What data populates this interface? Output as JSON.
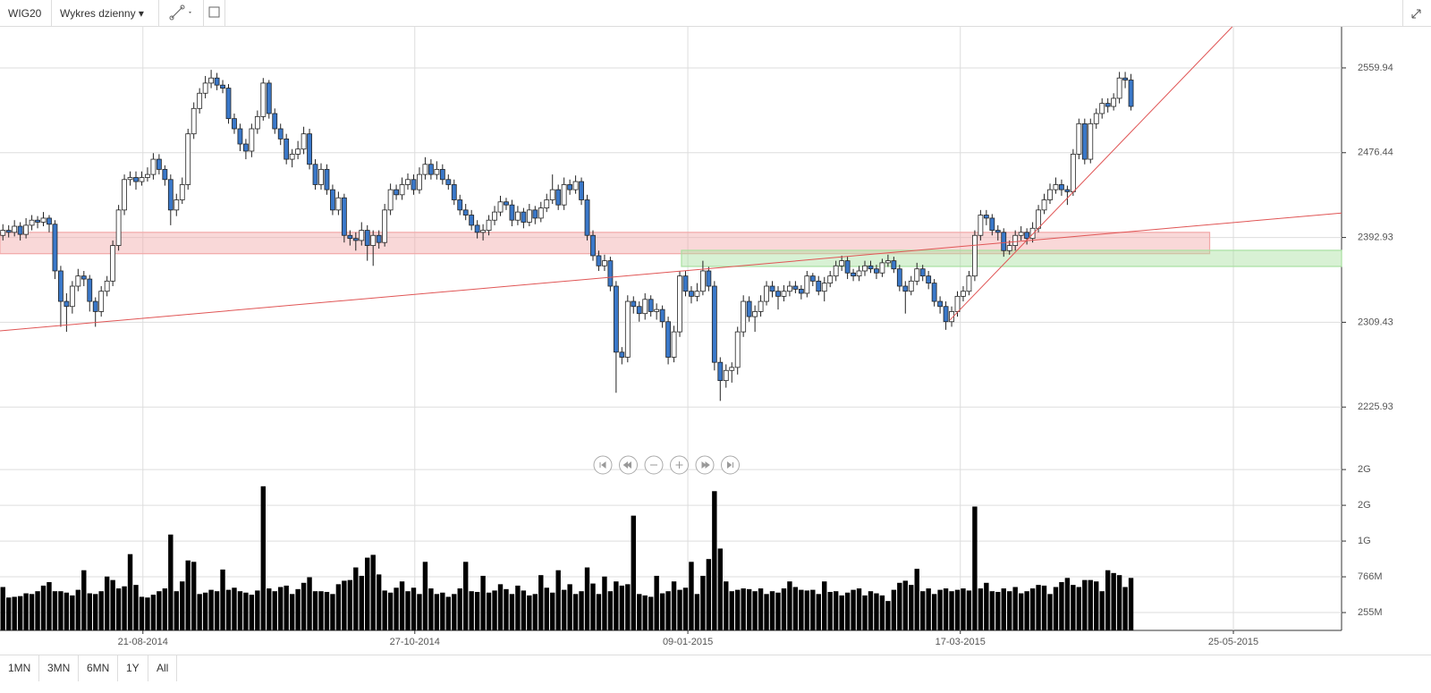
{
  "toolbar": {
    "symbol": "WIG20",
    "interval": "Wykres dzienny"
  },
  "range_buttons": [
    "1MN",
    "3MN",
    "6MN",
    "1Y",
    "All"
  ],
  "chart_data": {
    "type": "candlestick",
    "ohlc": [
      [
        2395,
        2406,
        2390,
        2400
      ],
      [
        2400,
        2405,
        2393,
        2398
      ],
      [
        2398,
        2410,
        2394,
        2404
      ],
      [
        2404,
        2408,
        2390,
        2396
      ],
      [
        2396,
        2412,
        2392,
        2405
      ],
      [
        2405,
        2415,
        2400,
        2410
      ],
      [
        2410,
        2414,
        2402,
        2408
      ],
      [
        2408,
        2418,
        2404,
        2412
      ],
      [
        2412,
        2415,
        2398,
        2406
      ],
      [
        2406,
        2410,
        2352,
        2360
      ],
      [
        2360,
        2365,
        2305,
        2330
      ],
      [
        2330,
        2338,
        2300,
        2325
      ],
      [
        2325,
        2350,
        2318,
        2345
      ],
      [
        2345,
        2362,
        2340,
        2355
      ],
      [
        2355,
        2360,
        2345,
        2352
      ],
      [
        2352,
        2356,
        2320,
        2330
      ],
      [
        2330,
        2334,
        2305,
        2320
      ],
      [
        2320,
        2345,
        2315,
        2340
      ],
      [
        2340,
        2355,
        2335,
        2350
      ],
      [
        2350,
        2390,
        2345,
        2385
      ],
      [
        2385,
        2425,
        2380,
        2420
      ],
      [
        2420,
        2455,
        2415,
        2450
      ],
      [
        2450,
        2458,
        2444,
        2452
      ],
      [
        2452,
        2458,
        2440,
        2448
      ],
      [
        2448,
        2458,
        2444,
        2452
      ],
      [
        2452,
        2462,
        2448,
        2455
      ],
      [
        2455,
        2476,
        2450,
        2470
      ],
      [
        2470,
        2475,
        2455,
        2460
      ],
      [
        2460,
        2464,
        2444,
        2450
      ],
      [
        2450,
        2455,
        2405,
        2420
      ],
      [
        2420,
        2436,
        2414,
        2430
      ],
      [
        2430,
        2452,
        2426,
        2445
      ],
      [
        2445,
        2500,
        2440,
        2495
      ],
      [
        2495,
        2526,
        2490,
        2520
      ],
      [
        2520,
        2540,
        2515,
        2535
      ],
      [
        2535,
        2552,
        2530,
        2545
      ],
      [
        2545,
        2558,
        2540,
        2550
      ],
      [
        2550,
        2555,
        2538,
        2543
      ],
      [
        2543,
        2548,
        2535,
        2540
      ],
      [
        2540,
        2544,
        2505,
        2510
      ],
      [
        2510,
        2515,
        2495,
        2500
      ],
      [
        2500,
        2505,
        2478,
        2485
      ],
      [
        2485,
        2490,
        2470,
        2478
      ],
      [
        2478,
        2505,
        2472,
        2500
      ],
      [
        2500,
        2518,
        2495,
        2512
      ],
      [
        2512,
        2550,
        2508,
        2545
      ],
      [
        2545,
        2548,
        2510,
        2515
      ],
      [
        2515,
        2520,
        2495,
        2500
      ],
      [
        2500,
        2505,
        2484,
        2490
      ],
      [
        2490,
        2495,
        2465,
        2470
      ],
      [
        2470,
        2480,
        2462,
        2475
      ],
      [
        2475,
        2488,
        2470,
        2480
      ],
      [
        2480,
        2502,
        2475,
        2495
      ],
      [
        2495,
        2500,
        2460,
        2465
      ],
      [
        2465,
        2470,
        2440,
        2445
      ],
      [
        2445,
        2466,
        2440,
        2460
      ],
      [
        2460,
        2465,
        2435,
        2440
      ],
      [
        2440,
        2445,
        2415,
        2420
      ],
      [
        2420,
        2438,
        2415,
        2432
      ],
      [
        2432,
        2436,
        2388,
        2395
      ],
      [
        2395,
        2400,
        2385,
        2392
      ],
      [
        2392,
        2398,
        2380,
        2390
      ],
      [
        2390,
        2408,
        2385,
        2400
      ],
      [
        2400,
        2405,
        2370,
        2385
      ],
      [
        2385,
        2400,
        2365,
        2395
      ],
      [
        2395,
        2400,
        2382,
        2388
      ],
      [
        2388,
        2426,
        2384,
        2420
      ],
      [
        2420,
        2446,
        2415,
        2440
      ],
      [
        2440,
        2445,
        2430,
        2435
      ],
      [
        2435,
        2452,
        2430,
        2445
      ],
      [
        2445,
        2456,
        2440,
        2450
      ],
      [
        2450,
        2455,
        2435,
        2440
      ],
      [
        2440,
        2462,
        2436,
        2455
      ],
      [
        2455,
        2472,
        2450,
        2465
      ],
      [
        2465,
        2470,
        2450,
        2455
      ],
      [
        2455,
        2468,
        2450,
        2460
      ],
      [
        2460,
        2465,
        2445,
        2450
      ],
      [
        2450,
        2455,
        2440,
        2445
      ],
      [
        2445,
        2450,
        2425,
        2430
      ],
      [
        2430,
        2435,
        2415,
        2420
      ],
      [
        2420,
        2426,
        2410,
        2415
      ],
      [
        2415,
        2420,
        2400,
        2405
      ],
      [
        2405,
        2410,
        2392,
        2398
      ],
      [
        2398,
        2406,
        2390,
        2400
      ],
      [
        2400,
        2415,
        2395,
        2410
      ],
      [
        2410,
        2424,
        2405,
        2418
      ],
      [
        2418,
        2434,
        2414,
        2428
      ],
      [
        2428,
        2432,
        2420,
        2425
      ],
      [
        2425,
        2430,
        2404,
        2410
      ],
      [
        2410,
        2424,
        2405,
        2418
      ],
      [
        2418,
        2422,
        2402,
        2408
      ],
      [
        2408,
        2426,
        2404,
        2420
      ],
      [
        2420,
        2424,
        2406,
        2412
      ],
      [
        2412,
        2428,
        2408,
        2422
      ],
      [
        2422,
        2436,
        2418,
        2430
      ],
      [
        2430,
        2455,
        2426,
        2440
      ],
      [
        2440,
        2445,
        2420,
        2425
      ],
      [
        2425,
        2452,
        2420,
        2445
      ],
      [
        2445,
        2450,
        2435,
        2440
      ],
      [
        2440,
        2454,
        2436,
        2448
      ],
      [
        2448,
        2452,
        2425,
        2430
      ],
      [
        2430,
        2435,
        2390,
        2395
      ],
      [
        2395,
        2400,
        2370,
        2375
      ],
      [
        2375,
        2380,
        2360,
        2365
      ],
      [
        2365,
        2376,
        2360,
        2370
      ],
      [
        2370,
        2374,
        2340,
        2345
      ],
      [
        2345,
        2350,
        2240,
        2280
      ],
      [
        2280,
        2285,
        2268,
        2275
      ],
      [
        2275,
        2336,
        2270,
        2330
      ],
      [
        2330,
        2335,
        2318,
        2325
      ],
      [
        2325,
        2330,
        2310,
        2318
      ],
      [
        2318,
        2338,
        2312,
        2332
      ],
      [
        2332,
        2336,
        2315,
        2320
      ],
      [
        2320,
        2328,
        2312,
        2322
      ],
      [
        2322,
        2326,
        2304,
        2310
      ],
      [
        2310,
        2315,
        2268,
        2275
      ],
      [
        2275,
        2306,
        2270,
        2300
      ],
      [
        2300,
        2360,
        2295,
        2355
      ],
      [
        2355,
        2360,
        2335,
        2340
      ],
      [
        2340,
        2345,
        2328,
        2335
      ],
      [
        2335,
        2348,
        2330,
        2340
      ],
      [
        2340,
        2370,
        2336,
        2360
      ],
      [
        2360,
        2364,
        2340,
        2345
      ],
      [
        2345,
        2350,
        2262,
        2270
      ],
      [
        2270,
        2275,
        2232,
        2252
      ],
      [
        2252,
        2268,
        2245,
        2262
      ],
      [
        2262,
        2270,
        2250,
        2265
      ],
      [
        2265,
        2305,
        2258,
        2300
      ],
      [
        2300,
        2336,
        2295,
        2330
      ],
      [
        2330,
        2335,
        2310,
        2315
      ],
      [
        2315,
        2326,
        2300,
        2320
      ],
      [
        2320,
        2336,
        2315,
        2330
      ],
      [
        2330,
        2350,
        2326,
        2345
      ],
      [
        2345,
        2350,
        2334,
        2340
      ],
      [
        2340,
        2345,
        2322,
        2335
      ],
      [
        2335,
        2346,
        2330,
        2340
      ],
      [
        2340,
        2350,
        2335,
        2345
      ],
      [
        2345,
        2350,
        2338,
        2342
      ],
      [
        2342,
        2346,
        2332,
        2338
      ],
      [
        2338,
        2360,
        2334,
        2355
      ],
      [
        2355,
        2358,
        2345,
        2350
      ],
      [
        2350,
        2355,
        2336,
        2340
      ],
      [
        2340,
        2354,
        2330,
        2348
      ],
      [
        2348,
        2360,
        2344,
        2355
      ],
      [
        2355,
        2370,
        2350,
        2365
      ],
      [
        2365,
        2375,
        2360,
        2370
      ],
      [
        2370,
        2374,
        2352,
        2358
      ],
      [
        2358,
        2362,
        2350,
        2355
      ],
      [
        2355,
        2365,
        2350,
        2360
      ],
      [
        2360,
        2370,
        2355,
        2365
      ],
      [
        2365,
        2370,
        2358,
        2362
      ],
      [
        2362,
        2366,
        2352,
        2358
      ],
      [
        2358,
        2372,
        2354,
        2368
      ],
      [
        2368,
        2376,
        2364,
        2370
      ],
      [
        2370,
        2374,
        2358,
        2362
      ],
      [
        2362,
        2366,
        2340,
        2345
      ],
      [
        2345,
        2350,
        2318,
        2340
      ],
      [
        2340,
        2355,
        2336,
        2350
      ],
      [
        2350,
        2368,
        2346,
        2362
      ],
      [
        2362,
        2366,
        2350,
        2355
      ],
      [
        2355,
        2360,
        2342,
        2348
      ],
      [
        2348,
        2352,
        2325,
        2330
      ],
      [
        2330,
        2335,
        2318,
        2325
      ],
      [
        2325,
        2330,
        2302,
        2310
      ],
      [
        2310,
        2325,
        2305,
        2320
      ],
      [
        2320,
        2340,
        2315,
        2335
      ],
      [
        2335,
        2345,
        2330,
        2340
      ],
      [
        2340,
        2360,
        2336,
        2355
      ],
      [
        2355,
        2400,
        2350,
        2395
      ],
      [
        2395,
        2420,
        2390,
        2415
      ],
      [
        2415,
        2420,
        2405,
        2412
      ],
      [
        2412,
        2416,
        2395,
        2400
      ],
      [
        2400,
        2405,
        2390,
        2398
      ],
      [
        2398,
        2402,
        2374,
        2380
      ],
      [
        2380,
        2390,
        2376,
        2385
      ],
      [
        2385,
        2400,
        2380,
        2395
      ],
      [
        2395,
        2404,
        2390,
        2398
      ],
      [
        2398,
        2402,
        2386,
        2392
      ],
      [
        2392,
        2408,
        2388,
        2402
      ],
      [
        2402,
        2425,
        2398,
        2420
      ],
      [
        2420,
        2436,
        2416,
        2430
      ],
      [
        2430,
        2446,
        2426,
        2440
      ],
      [
        2440,
        2452,
        2436,
        2445
      ],
      [
        2445,
        2450,
        2434,
        2440
      ],
      [
        2440,
        2444,
        2425,
        2438
      ],
      [
        2438,
        2480,
        2434,
        2475
      ],
      [
        2475,
        2510,
        2470,
        2505
      ],
      [
        2505,
        2510,
        2465,
        2470
      ],
      [
        2470,
        2510,
        2466,
        2505
      ],
      [
        2505,
        2520,
        2500,
        2515
      ],
      [
        2515,
        2530,
        2510,
        2525
      ],
      [
        2525,
        2530,
        2516,
        2522
      ],
      [
        2522,
        2535,
        2518,
        2530
      ],
      [
        2530,
        2556,
        2525,
        2550
      ],
      [
        2550,
        2556,
        2540,
        2548
      ],
      [
        2548,
        2554,
        2518,
        2522
      ]
    ],
    "volume": [
      620,
      470,
      480,
      490,
      530,
      520,
      560,
      640,
      690,
      560,
      560,
      540,
      500,
      580,
      860,
      530,
      520,
      560,
      770,
      720,
      600,
      630,
      1090,
      650,
      480,
      470,
      510,
      560,
      600,
      1370,
      560,
      700,
      1000,
      980,
      520,
      540,
      580,
      560,
      870,
      580,
      610,
      560,
      540,
      510,
      570,
      2060,
      600,
      560,
      620,
      640,
      520,
      590,
      680,
      760,
      560,
      560,
      550,
      520,
      660,
      710,
      720,
      900,
      780,
      1040,
      1080,
      800,
      570,
      540,
      610,
      700,
      560,
      610,
      520,
      980,
      600,
      520,
      540,
      480,
      520,
      600,
      980,
      560,
      550,
      780,
      540,
      570,
      660,
      590,
      520,
      640,
      570,
      500,
      520,
      790,
      610,
      540,
      860,
      580,
      660,
      520,
      560,
      900,
      670,
      520,
      770,
      560,
      700,
      640,
      660,
      1640,
      520,
      500,
      480,
      780,
      530,
      560,
      700,
      580,
      610,
      980,
      520,
      780,
      1020,
      1990,
      1170,
      700,
      560,
      580,
      600,
      590,
      560,
      600,
      520,
      560,
      540,
      600,
      700,
      620,
      580,
      570,
      580,
      520,
      700,
      550,
      560,
      500,
      540,
      580,
      600,
      500,
      560,
      530,
      500,
      420,
      580,
      680,
      710,
      650,
      880,
      560,
      600,
      520,
      580,
      600,
      560,
      580,
      600,
      570,
      1770,
      600,
      680,
      560,
      550,
      600,
      560,
      620,
      530,
      560,
      600,
      650,
      640,
      520,
      620,
      690,
      750,
      650,
      620,
      720,
      720,
      700,
      560,
      860,
      820,
      790,
      620,
      750
    ],
    "xlim": [
      -0.5,
      231.4
    ],
    "xticks": [
      {
        "value": 24.2,
        "label": "21-08-2014"
      },
      {
        "value": 71.2,
        "label": "27-10-2014"
      },
      {
        "value": 118.4,
        "label": "09-01-2015"
      },
      {
        "value": 165.5,
        "label": "17-03-2015"
      },
      {
        "value": 212.7,
        "label": "25-05-2015"
      }
    ],
    "ylim": [
      2186.5,
      2600.4
    ],
    "yticks": [
      2225.93,
      2309.43,
      2392.93,
      2476.44,
      2559.94
    ],
    "y2lim": [
      0,
      2492
    ],
    "y2ticks": [
      {
        "value": 255,
        "label": "255M"
      },
      {
        "value": 766,
        "label": "766M"
      },
      {
        "value": 1277,
        "label": "1G"
      },
      {
        "value": 1788,
        "label": "2G"
      },
      {
        "value": 2299,
        "label": "2G"
      }
    ],
    "grid": true,
    "up_color": "#ffffff",
    "down_color": "#3a78c9",
    "volume_color": "#000000",
    "zones": [
      {
        "x": [
          -0.5,
          208.6
        ],
        "y": [
          2377,
          2398
        ],
        "color": "#f2a8a8"
      },
      {
        "x": [
          117.3,
          231.4
        ],
        "y": [
          2364.4,
          2380.3
        ],
        "color": "#a8e0a0"
      }
    ],
    "trendlines": [
      {
        "x": [
          -0.5,
          231.4
        ],
        "y": [
          2301,
          2417
        ],
        "color": "#e05555"
      },
      {
        "x": [
          163.7,
          212.5
        ],
        "y": [
          2311.6,
          2600.4
        ],
        "color": "#e05555"
      }
    ]
  }
}
